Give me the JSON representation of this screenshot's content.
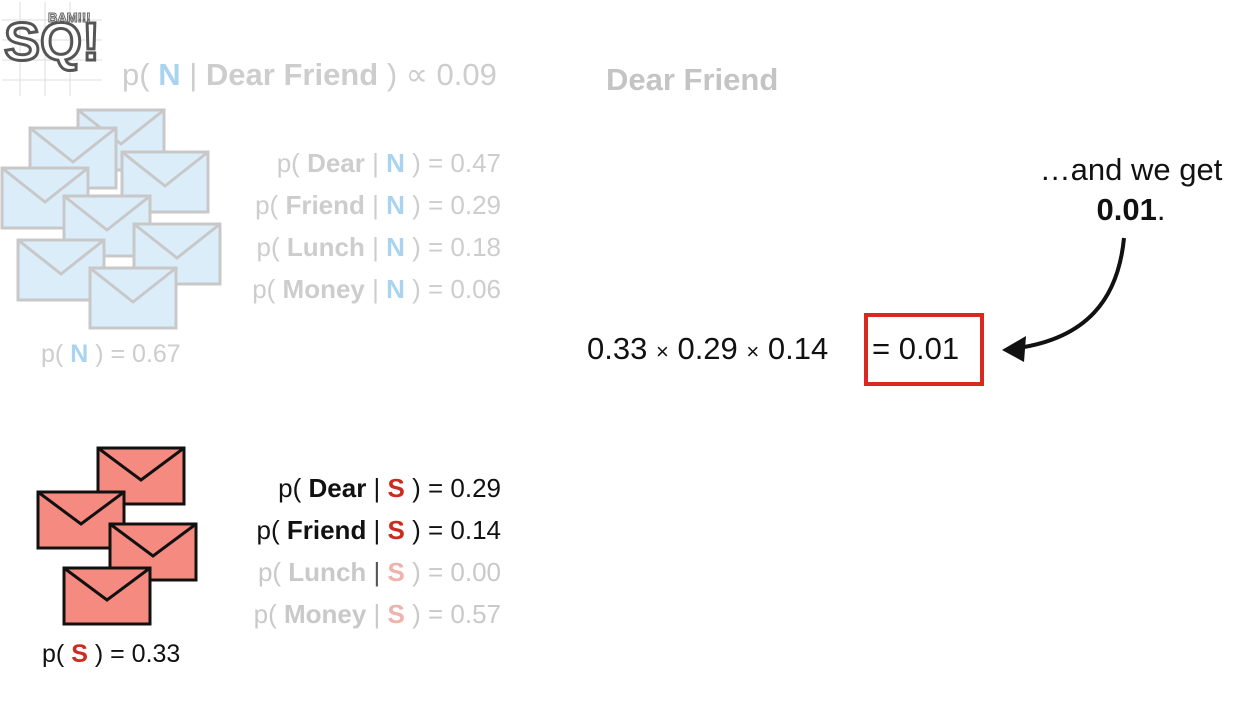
{
  "logo": {
    "text": "SQ!",
    "sub": "BAM!!!"
  },
  "header": {
    "open": "p(",
    "class_symbol": "N",
    "bar": "|",
    "given": "Dear Friend",
    "close": ")",
    "prop": "∝",
    "value": "0.09"
  },
  "phrase": "Dear Friend",
  "normal": {
    "symbol": "N",
    "likelihoods": [
      {
        "word": "Dear",
        "value": "0.47"
      },
      {
        "word": "Friend",
        "value": "0.29"
      },
      {
        "word": "Lunch",
        "value": "0.18"
      },
      {
        "word": "Money",
        "value": "0.06"
      }
    ],
    "prior": {
      "open": "p(",
      "close": ")",
      "eq": "=",
      "value": "0.67"
    }
  },
  "spam": {
    "symbol": "S",
    "likelihoods": [
      {
        "word": "Dear",
        "value": "0.29"
      },
      {
        "word": "Friend",
        "value": "0.14"
      },
      {
        "word": "Lunch",
        "value": "0.00"
      },
      {
        "word": "Money",
        "value": "0.57"
      }
    ],
    "prior": {
      "open": "p(",
      "close": ")",
      "eq": "=",
      "value": "0.33"
    }
  },
  "equation": {
    "factors": [
      "0.33",
      "0.29",
      "0.14"
    ],
    "times": "×",
    "eq": "=",
    "result": "0.01"
  },
  "annotation": {
    "line1": "…and we get",
    "value": "0.01",
    "tail": "."
  },
  "colors": {
    "normal_envelope_fill": "#dcedfa",
    "normal_envelope_stroke": "#c8c8c8",
    "spam_envelope_fill": "#f58a80",
    "spam_envelope_stroke": "#111111",
    "spam_symbol": "#cc2b1d",
    "normal_symbol": "#a9d4f0",
    "highlight_box": "#d9281d"
  }
}
